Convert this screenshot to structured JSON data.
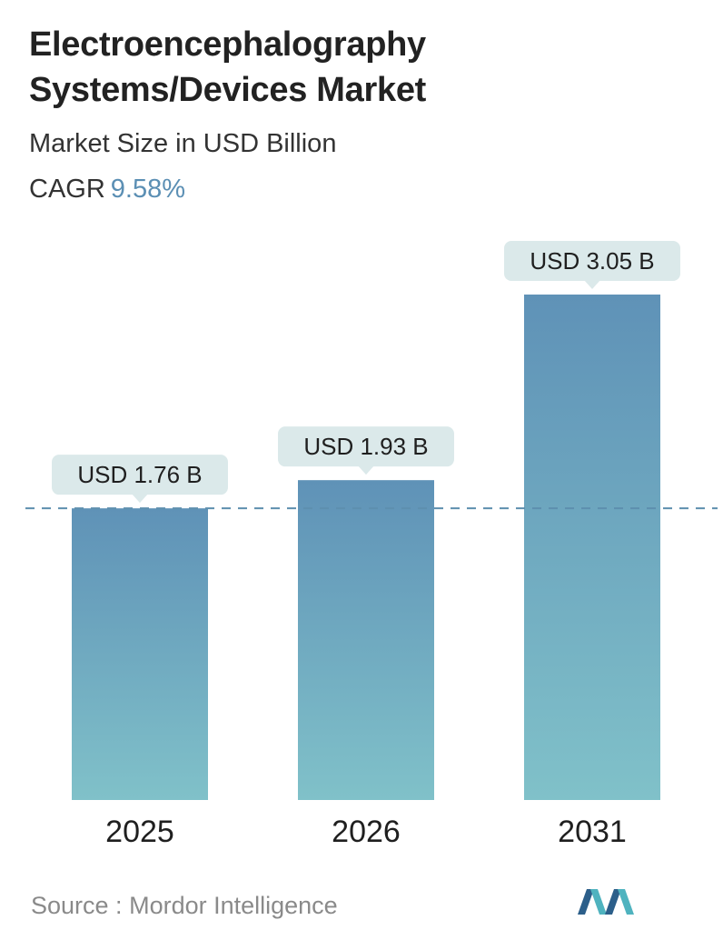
{
  "title": "Electroencephalography Systems/Devices Market",
  "subtitle": "Market Size in USD Billion",
  "cagr": {
    "label": "CAGR",
    "value": "9.58%"
  },
  "source": {
    "label": "Source :",
    "text": "Mordor Intelligence"
  },
  "logo": {
    "name": "mordor-intelligence-logo"
  },
  "colors": {
    "bar_top": "#5f92b7",
    "bar_bottom": "#80c1c9",
    "label_bg": "#dbe9ea",
    "reference_line": "#5d8fae",
    "cagr": "#5b8fb4",
    "logo_dark": "#2c5f8a",
    "logo_light": "#4fb3bf"
  },
  "chart_data": {
    "type": "bar",
    "categories": [
      "2025",
      "2026",
      "2031"
    ],
    "values": [
      1.76,
      1.93,
      3.05
    ],
    "labels": [
      "USD 1.76 B",
      "USD 1.93 B",
      "USD 3.05 B"
    ],
    "title": "Electroencephalography Systems/Devices Market",
    "subtitle": "Market Size in USD Billion",
    "xlabel": "",
    "ylabel": "",
    "reference_line": 1.76,
    "grid": false,
    "legend": "none"
  }
}
